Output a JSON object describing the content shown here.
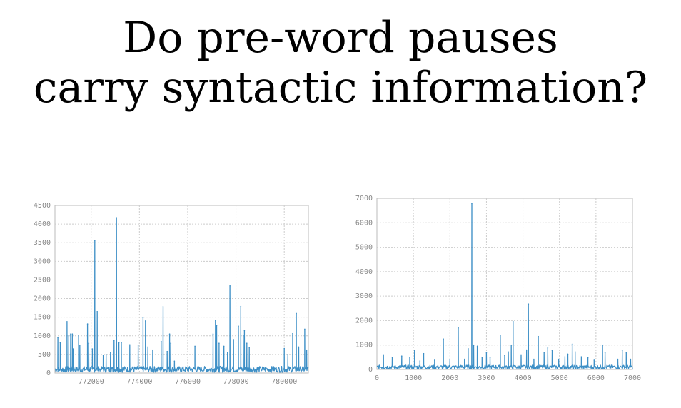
{
  "title_line1": "Do pre-word pauses",
  "title_line2": "carry syntactic information?",
  "chart_data": [
    {
      "type": "line",
      "xlim": [
        770500,
        781000
      ],
      "ylim": [
        0,
        4500
      ],
      "xticks": [
        772000,
        774000,
        776000,
        778000,
        780000
      ],
      "yticks": [
        0,
        500,
        1000,
        1500,
        2000,
        2500,
        3000,
        3500,
        4000,
        4500
      ],
      "grid": true,
      "color": "#3d8fc6",
      "baseline": 100,
      "spikes": [
        [
          770620,
          950
        ],
        [
          770720,
          820
        ],
        [
          771000,
          1380
        ],
        [
          771070,
          1000
        ],
        [
          771150,
          1050
        ],
        [
          771220,
          1050
        ],
        [
          771260,
          650
        ],
        [
          771480,
          1000
        ],
        [
          771530,
          750
        ],
        [
          771850,
          1320
        ],
        [
          771900,
          800
        ],
        [
          772050,
          650
        ],
        [
          772150,
          3560
        ],
        [
          772250,
          1650
        ],
        [
          772500,
          480
        ],
        [
          772620,
          500
        ],
        [
          772800,
          560
        ],
        [
          772950,
          880
        ],
        [
          773050,
          4170
        ],
        [
          773150,
          820
        ],
        [
          773250,
          820
        ],
        [
          773600,
          760
        ],
        [
          773950,
          750
        ],
        [
          774150,
          1490
        ],
        [
          774250,
          1400
        ],
        [
          774350,
          700
        ],
        [
          774550,
          620
        ],
        [
          774900,
          850
        ],
        [
          774980,
          1780
        ],
        [
          775150,
          580
        ],
        [
          775250,
          1050
        ],
        [
          775300,
          800
        ],
        [
          775450,
          320
        ],
        [
          776300,
          720
        ],
        [
          777050,
          1050
        ],
        [
          777150,
          1420
        ],
        [
          777200,
          1280
        ],
        [
          777300,
          800
        ],
        [
          777500,
          720
        ],
        [
          777650,
          560
        ],
        [
          777750,
          2340
        ],
        [
          777900,
          900
        ],
        [
          778100,
          1260
        ],
        [
          778200,
          1790
        ],
        [
          778300,
          1000
        ],
        [
          778350,
          1140
        ],
        [
          778450,
          800
        ],
        [
          778550,
          680
        ],
        [
          780000,
          660
        ],
        [
          780150,
          500
        ],
        [
          780350,
          1060
        ],
        [
          780500,
          1600
        ],
        [
          780600,
          700
        ],
        [
          780850,
          1180
        ],
        [
          780930,
          620
        ]
      ]
    },
    {
      "type": "line",
      "xlim": [
        0,
        7000
      ],
      "ylim": [
        0,
        7000
      ],
      "xticks": [
        0,
        1000,
        2000,
        3000,
        4000,
        5000,
        6000,
        7000
      ],
      "yticks": [
        0,
        1000,
        2000,
        3000,
        4000,
        5000,
        6000,
        7000
      ],
      "grid": true,
      "color": "#3d8fc6",
      "baseline": 100,
      "spikes": [
        [
          180,
          600
        ],
        [
          420,
          500
        ],
        [
          680,
          550
        ],
        [
          900,
          500
        ],
        [
          1030,
          780
        ],
        [
          1180,
          350
        ],
        [
          1280,
          650
        ],
        [
          1580,
          380
        ],
        [
          1820,
          1250
        ],
        [
          2000,
          420
        ],
        [
          2230,
          1700
        ],
        [
          2400,
          420
        ],
        [
          2500,
          850
        ],
        [
          2600,
          6780
        ],
        [
          2650,
          1000
        ],
        [
          2750,
          950
        ],
        [
          2880,
          500
        ],
        [
          3000,
          680
        ],
        [
          3100,
          480
        ],
        [
          3380,
          1400
        ],
        [
          3500,
          580
        ],
        [
          3600,
          720
        ],
        [
          3680,
          1000
        ],
        [
          3730,
          1960
        ],
        [
          3950,
          600
        ],
        [
          4100,
          800
        ],
        [
          4150,
          2680
        ],
        [
          4300,
          420
        ],
        [
          4420,
          1350
        ],
        [
          4580,
          700
        ],
        [
          4680,
          880
        ],
        [
          4800,
          780
        ],
        [
          4980,
          420
        ],
        [
          5150,
          520
        ],
        [
          5230,
          630
        ],
        [
          5350,
          1040
        ],
        [
          5430,
          720
        ],
        [
          5600,
          520
        ],
        [
          5780,
          480
        ],
        [
          5950,
          380
        ],
        [
          6180,
          1000
        ],
        [
          6250,
          680
        ],
        [
          6600,
          420
        ],
        [
          6720,
          780
        ],
        [
          6830,
          680
        ],
        [
          6950,
          420
        ]
      ]
    }
  ]
}
